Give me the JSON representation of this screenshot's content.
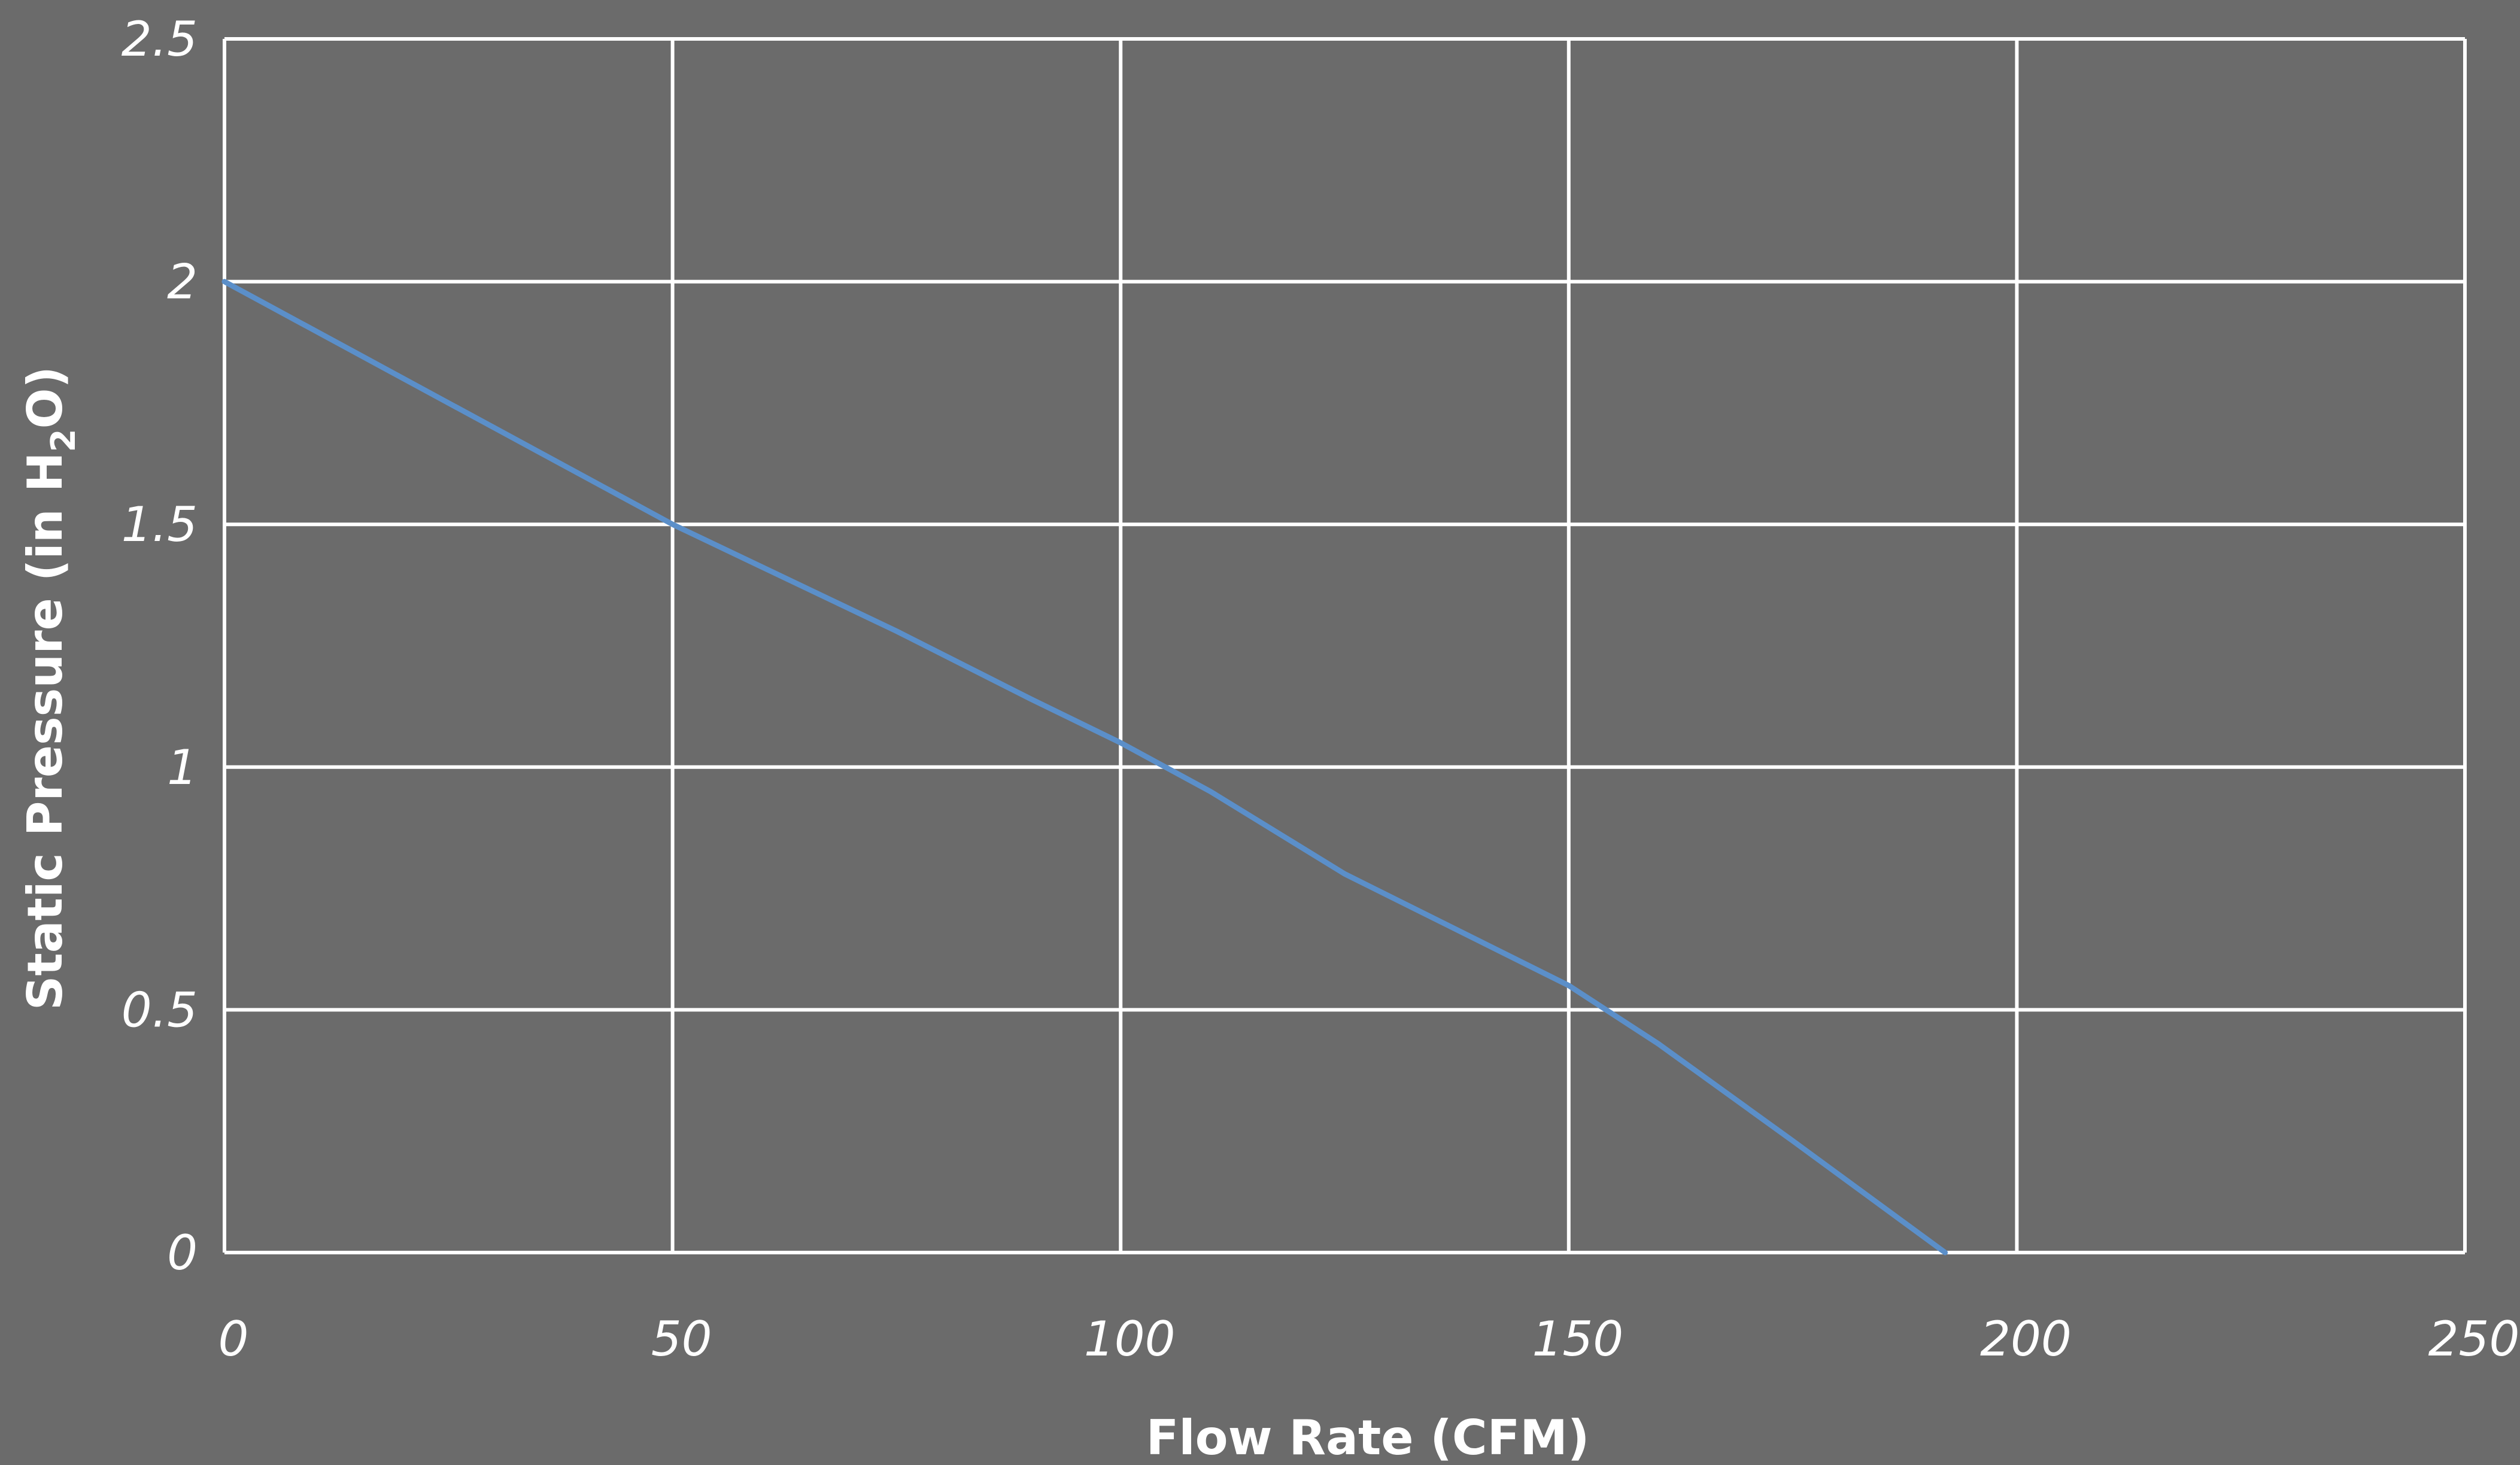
{
  "chart_data": {
    "type": "line",
    "title": "",
    "xlabel": "Flow Rate (CFM)",
    "ylabel_parts": {
      "before": "Static Pressure (in H",
      "subscript": "2",
      "after": "O)"
    },
    "xlim": [
      0,
      250
    ],
    "ylim": [
      0,
      2.5
    ],
    "x_ticks": [
      0,
      50,
      100,
      150,
      200,
      250
    ],
    "y_ticks": [
      0,
      0.5,
      1,
      1.5,
      2,
      2.5
    ],
    "x_tick_labels": [
      "0",
      "50",
      "100",
      "150",
      "200",
      "250"
    ],
    "y_tick_labels": [
      "0",
      "0.5",
      "1",
      "1.5",
      "2",
      "2.5"
    ],
    "grid": true,
    "legend": "none",
    "series": [
      {
        "color": "#5b8fc9",
        "x": [
          0,
          25,
          50,
          75,
          90,
          100,
          110,
          125,
          150,
          160,
          175,
          192
        ],
        "y": [
          2.0,
          1.75,
          1.5,
          1.28,
          1.14,
          1.05,
          0.95,
          0.78,
          0.55,
          0.43,
          0.23,
          0.0
        ]
      }
    ]
  }
}
